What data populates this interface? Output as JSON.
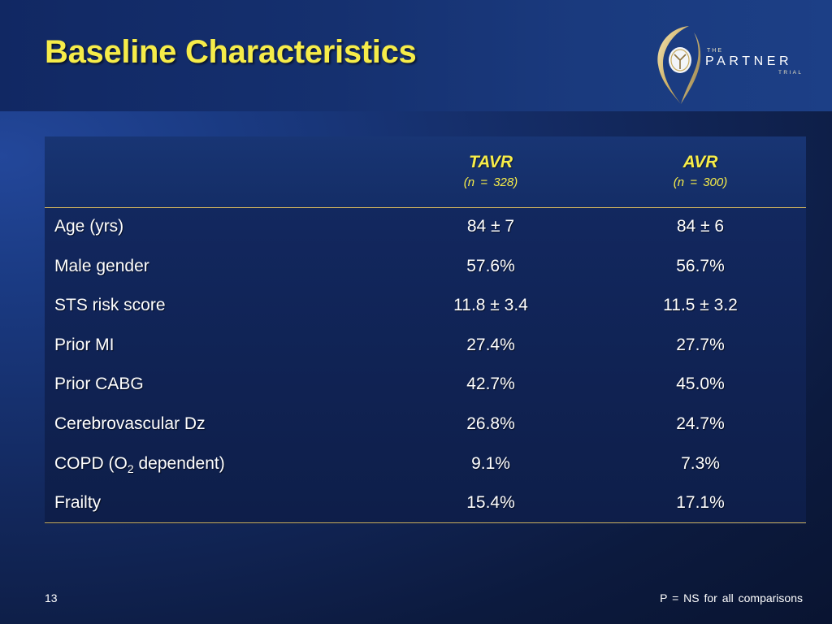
{
  "slide": {
    "title": "Baseline Characteristics",
    "page_number": "13",
    "footnote": "P = NS for all comparisons"
  },
  "logo": {
    "the": "THE",
    "partner": "PARTNER",
    "trial": "TRIAL"
  },
  "table": {
    "columns": [
      {
        "name": "TAVR",
        "n": "(n = 328)"
      },
      {
        "name": "AVR",
        "n": "(n = 300)"
      }
    ],
    "rows": [
      {
        "label": "Age (yrs)",
        "tavr": "84 ± 7",
        "avr": "84 ± 6"
      },
      {
        "label": "Male gender",
        "tavr": "57.6%",
        "avr": "56.7%"
      },
      {
        "label": "STS risk score",
        "tavr": "11.8 ± 3.4",
        "avr": "11.5 ± 3.2"
      },
      {
        "label": "Prior MI",
        "tavr": "27.4%",
        "avr": "27.7%"
      },
      {
        "label": "Prior CABG",
        "tavr": "42.7%",
        "avr": "45.0%"
      },
      {
        "label": "Cerebrovascular Dz",
        "tavr": "26.8%",
        "avr": "24.7%"
      },
      {
        "label_pre": "COPD (O",
        "label_sub": "2",
        "label_post": " dependent)",
        "tavr": "9.1%",
        "avr": "7.3%"
      },
      {
        "label": "Frailty",
        "tavr": "15.4%",
        "avr": "17.1%"
      }
    ]
  },
  "colors": {
    "title": "#f6ec49",
    "rule": "#cdb25d",
    "background": "#13295f"
  }
}
